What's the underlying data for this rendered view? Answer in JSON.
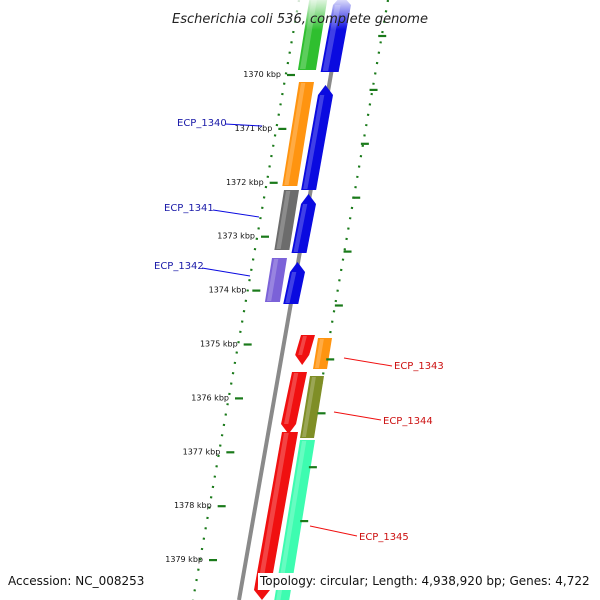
{
  "title": "Escherichia coli 536, complete genome",
  "accession": "Accession: NC_008253",
  "summary": "Topology: circular; Length: 4,938,920 bp; Genes: 4,722",
  "ruler": [
    {
      "label": "1370 kbp"
    },
    {
      "label": "1371 kbp"
    },
    {
      "label": "1372 kbp"
    },
    {
      "label": "1373 kbp"
    },
    {
      "label": "1374 kbp"
    },
    {
      "label": "1375 kbp"
    },
    {
      "label": "1376 kbp"
    },
    {
      "label": "1377 kbp"
    },
    {
      "label": "1378 kbp"
    },
    {
      "label": "1379 kbp"
    }
  ],
  "genes_left": [
    {
      "label": "ECP_1340"
    },
    {
      "label": "ECP_1341"
    },
    {
      "label": "ECP_1342"
    }
  ],
  "genes_right": [
    {
      "label": "ECP_1343"
    },
    {
      "label": "ECP_1344"
    },
    {
      "label": "ECP_1345"
    }
  ],
  "colors": {
    "green": "#2fbf2f",
    "blue": "#0a0ae0",
    "orange": "#ff9410",
    "gray": "#6c6c6c",
    "purple": "#7b62d8",
    "red": "#f01010",
    "olive": "#7f8e26",
    "aquamarine": "#3dfcb0",
    "tick": "#1a7a1a",
    "backbone": "#8a8a8a"
  }
}
